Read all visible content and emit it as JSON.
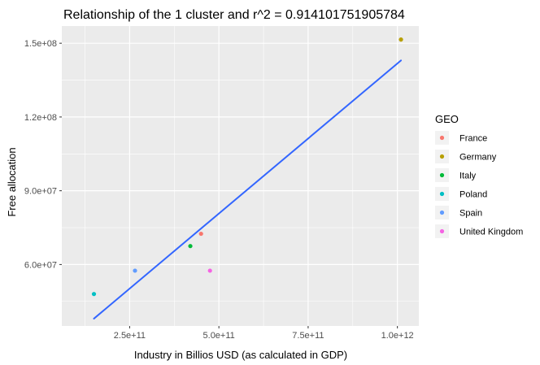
{
  "chart_data": {
    "type": "scatter",
    "title": "Relationship of the 1  cluster and r^2 =  0.914101751905784",
    "xlabel": "Industry in Billios USD (as calculated in GDP)",
    "ylabel": "Free allocation",
    "xlim": [
      60000000000,
      1060000000000
    ],
    "ylim": [
      35000000000,
      157000000
    ],
    "x_ticks": [
      {
        "value": 250000000000,
        "label": "2.5e+11"
      },
      {
        "value": 500000000000,
        "label": "5.0e+11"
      },
      {
        "value": 750000000000,
        "label": "7.5e+11"
      },
      {
        "value": 1000000000000,
        "label": "1.0e+12"
      }
    ],
    "y_ticks": [
      {
        "value": 60000000,
        "label": "6.0e+07"
      },
      {
        "value": 90000000,
        "label": "9.0e+07"
      },
      {
        "value": 120000000,
        "label": "1.2e+08"
      },
      {
        "value": 150000000,
        "label": "1.5e+08"
      }
    ],
    "legend": {
      "title": "GEO",
      "placement": "right"
    },
    "series": [
      {
        "name": "France",
        "color": "#F8766D",
        "x": 450000000000,
        "y": 72500000
      },
      {
        "name": "Germany",
        "color": "#B79F00",
        "x": 1010000000000,
        "y": 151500000
      },
      {
        "name": "Italy",
        "color": "#00BA38",
        "x": 420000000000,
        "y": 67500000
      },
      {
        "name": "Poland",
        "color": "#00BFC4",
        "x": 150000000000,
        "y": 48000000
      },
      {
        "name": "Spain",
        "color": "#619CFF",
        "x": 265000000000,
        "y": 57500000
      },
      {
        "name": "United Kingdom",
        "color": "#F564E3",
        "x": 475000000000,
        "y": 57500000
      }
    ],
    "fit_line": {
      "color": "#3366FF",
      "x": [
        150000000000,
        1010000000000
      ],
      "y": [
        38000000,
        143000000
      ]
    },
    "panel_background": "#EBEBEB",
    "grid": true
  }
}
